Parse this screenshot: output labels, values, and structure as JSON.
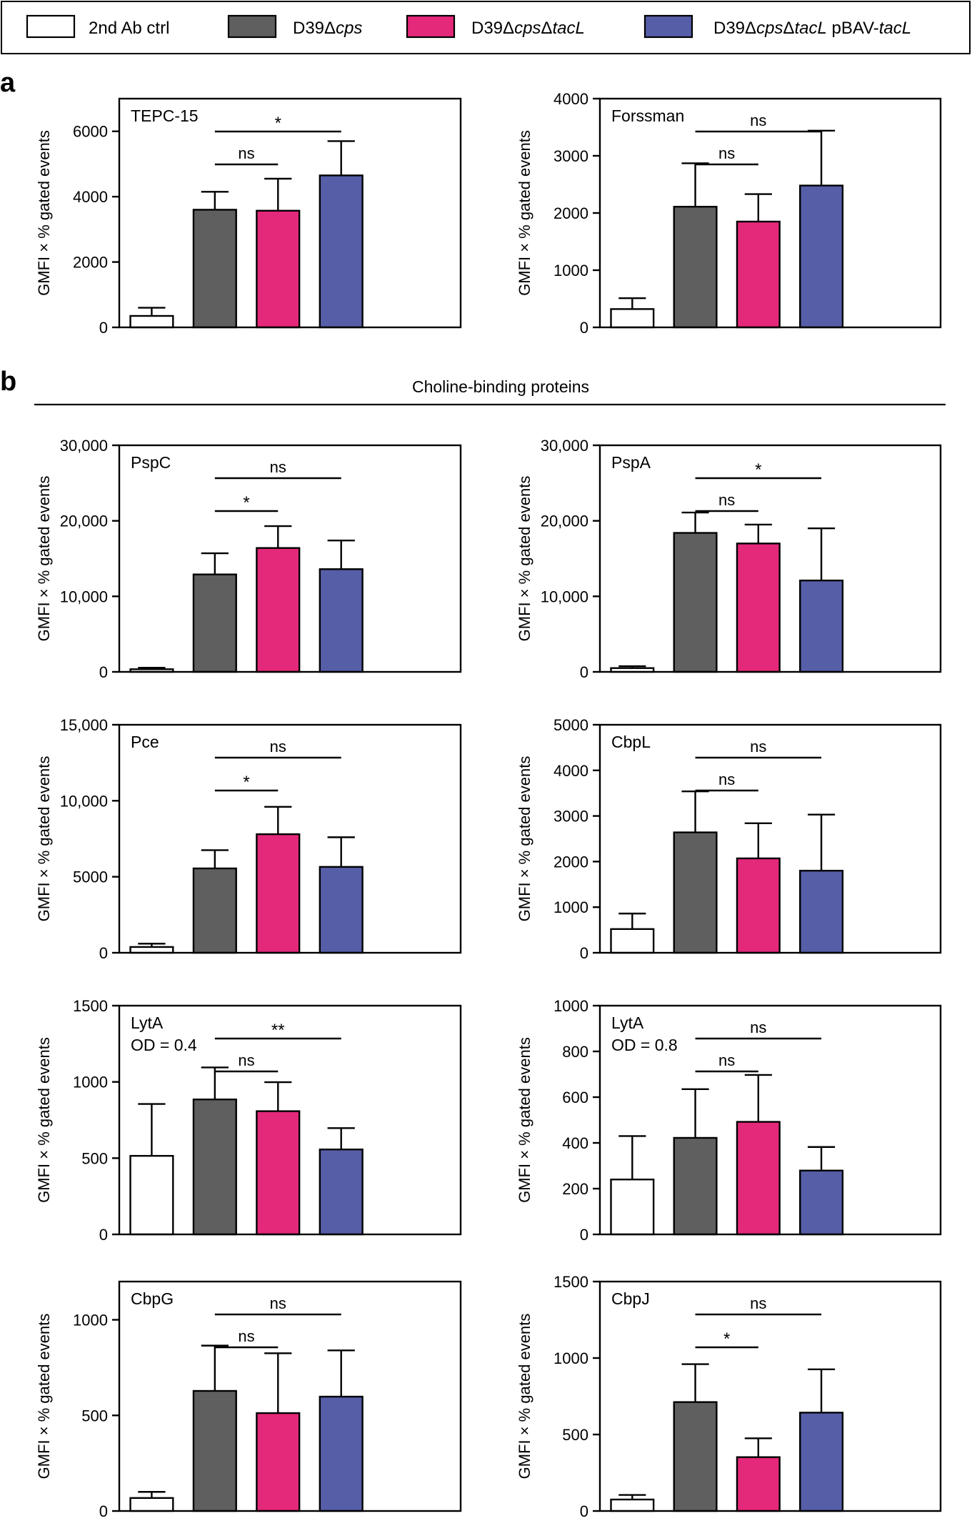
{
  "colors": {
    "ctrl": "#ffffff",
    "cps": "#5f5f5f",
    "tacL": "#e4287a",
    "comp": "#565ea8",
    "stroke": "#000000"
  },
  "legend": [
    {
      "key": "ctrl",
      "parts": [
        {
          "t": "2nd Ab ctrl",
          "i": false
        }
      ]
    },
    {
      "key": "cps",
      "parts": [
        {
          "t": "D39Δ",
          "i": false
        },
        {
          "t": "cps",
          "i": true
        }
      ]
    },
    {
      "key": "tacL",
      "parts": [
        {
          "t": "D39Δ",
          "i": false
        },
        {
          "t": "cps",
          "i": true
        },
        {
          "t": "Δ",
          "i": false
        },
        {
          "t": "tacL",
          "i": true
        }
      ]
    },
    {
      "key": "comp",
      "parts": [
        {
          "t": "D39Δ",
          "i": false
        },
        {
          "t": "cps",
          "i": true
        },
        {
          "t": "Δ",
          "i": false
        },
        {
          "t": "tacL",
          "i": true
        },
        {
          "t": " pBAV-",
          "i": false
        },
        {
          "t": "tacL",
          "i": true
        }
      ]
    }
  ],
  "panel_labels": {
    "a": "a",
    "b": "b"
  },
  "section_title": "Choline-binding proteins",
  "chart_data": [
    {
      "type": "bar",
      "title": "TEPC-15",
      "title2": "",
      "ylabel": "GMFI × % gated events",
      "ylim": [
        0,
        7000
      ],
      "yticks": [
        0,
        2000,
        4000,
        6000
      ],
      "ytick_labels": [
        "0",
        "2000",
        "4000",
        "6000"
      ],
      "categories": [
        "2nd Ab ctrl",
        "D39Δcps",
        "D39ΔcpsΔtacL",
        "D39ΔcpsΔtacL pBAV-tacL"
      ],
      "values": [
        350,
        3600,
        3570,
        4650
      ],
      "errors": [
        250,
        550,
        980,
        1050
      ],
      "sig": [
        {
          "from": 1,
          "to": 2,
          "label": "ns",
          "level": 1
        },
        {
          "from": 1,
          "to": 3,
          "label": "*",
          "level": 2
        }
      ]
    },
    {
      "type": "bar",
      "title": "Forssman",
      "title2": "",
      "ylabel": "GMFI × % gated events",
      "ylim": [
        0,
        4000
      ],
      "yticks": [
        0,
        1000,
        2000,
        3000,
        4000
      ],
      "ytick_labels": [
        "0",
        "1000",
        "2000",
        "3000",
        "4000"
      ],
      "categories": [
        "2nd Ab ctrl",
        "D39Δcps",
        "D39ΔcpsΔtacL",
        "D39ΔcpsΔtacL pBAV-tacL"
      ],
      "values": [
        320,
        2110,
        1850,
        2480
      ],
      "errors": [
        190,
        760,
        480,
        960
      ],
      "sig": [
        {
          "from": 1,
          "to": 2,
          "label": "ns",
          "level": 1
        },
        {
          "from": 1,
          "to": 3,
          "label": "ns",
          "level": 2
        }
      ]
    },
    {
      "type": "bar",
      "title": "PspC",
      "title2": "",
      "ylabel": "GMFI × % gated events",
      "ylim": [
        0,
        30000
      ],
      "yticks": [
        0,
        10000,
        20000,
        30000
      ],
      "ytick_labels": [
        "0",
        "10,000",
        "20,000",
        "30,000"
      ],
      "categories": [
        "2nd Ab ctrl",
        "D39Δcps",
        "D39ΔcpsΔtacL",
        "D39ΔcpsΔtacL pBAV-tacL"
      ],
      "values": [
        350,
        12900,
        16400,
        13600
      ],
      "errors": [
        200,
        2800,
        2900,
        3800
      ],
      "sig": [
        {
          "from": 1,
          "to": 2,
          "label": "*",
          "level": 1
        },
        {
          "from": 1,
          "to": 3,
          "label": "ns",
          "level": 2
        }
      ]
    },
    {
      "type": "bar",
      "title": "PspA",
      "title2": "",
      "ylabel": "GMFI × % gated events",
      "ylim": [
        0,
        30000
      ],
      "yticks": [
        0,
        10000,
        20000,
        30000
      ],
      "ytick_labels": [
        "0",
        "10,000",
        "20,000",
        "30,000"
      ],
      "categories": [
        "2nd Ab ctrl",
        "D39Δcps",
        "D39ΔcpsΔtacL",
        "D39ΔcpsΔtacL pBAV-tacL"
      ],
      "values": [
        500,
        18400,
        17000,
        12100
      ],
      "errors": [
        250,
        2700,
        2500,
        6900
      ],
      "sig": [
        {
          "from": 1,
          "to": 2,
          "label": "ns",
          "level": 1
        },
        {
          "from": 1,
          "to": 3,
          "label": "*",
          "level": 2
        }
      ]
    },
    {
      "type": "bar",
      "title": "Pce",
      "title2": "",
      "ylabel": "GMFI × % gated events",
      "ylim": [
        0,
        15000
      ],
      "yticks": [
        0,
        5000,
        10000,
        15000
      ],
      "ytick_labels": [
        "0",
        "5000",
        "10,000",
        "15,000"
      ],
      "categories": [
        "2nd Ab ctrl",
        "D39Δcps",
        "D39ΔcpsΔtacL",
        "D39ΔcpsΔtacL pBAV-tacL"
      ],
      "values": [
        380,
        5550,
        7800,
        5650
      ],
      "errors": [
        220,
        1200,
        1800,
        1950
      ],
      "sig": [
        {
          "from": 1,
          "to": 2,
          "label": "*",
          "level": 1
        },
        {
          "from": 1,
          "to": 3,
          "label": "ns",
          "level": 2
        }
      ]
    },
    {
      "type": "bar",
      "title": "CbpL",
      "title2": "",
      "ylabel": "GMFI × % gated events",
      "ylim": [
        0,
        5000
      ],
      "yticks": [
        0,
        1000,
        2000,
        3000,
        4000,
        5000
      ],
      "ytick_labels": [
        "0",
        "1000",
        "2000",
        "3000",
        "4000",
        "5000"
      ],
      "categories": [
        "2nd Ab ctrl",
        "D39Δcps",
        "D39ΔcpsΔtacL",
        "D39ΔcpsΔtacL pBAV-tacL"
      ],
      "values": [
        520,
        2640,
        2070,
        1800
      ],
      "errors": [
        340,
        900,
        770,
        1230
      ],
      "sig": [
        {
          "from": 1,
          "to": 2,
          "label": "ns",
          "level": 1
        },
        {
          "from": 1,
          "to": 3,
          "label": "ns",
          "level": 2
        }
      ]
    },
    {
      "type": "bar",
      "title": "LytA",
      "title2": "OD = 0.4",
      "ylabel": "GMFI × % gated events",
      "ylim": [
        0,
        1500
      ],
      "yticks": [
        0,
        500,
        1000,
        1500
      ],
      "ytick_labels": [
        "0",
        "500",
        "1000",
        "1500"
      ],
      "categories": [
        "2nd Ab ctrl",
        "D39Δcps",
        "D39ΔcpsΔtacL",
        "D39ΔcpsΔtacL pBAV-tacL"
      ],
      "values": [
        515,
        885,
        808,
        557
      ],
      "errors": [
        340,
        210,
        190,
        140
      ],
      "sig": [
        {
          "from": 1,
          "to": 2,
          "label": "ns",
          "level": 1
        },
        {
          "from": 1,
          "to": 3,
          "label": "**",
          "level": 2
        }
      ]
    },
    {
      "type": "bar",
      "title": "LytA",
      "title2": "OD = 0.8",
      "ylabel": "GMFI × % gated events",
      "ylim": [
        0,
        1000
      ],
      "yticks": [
        0,
        200,
        400,
        600,
        800,
        1000
      ],
      "ytick_labels": [
        "0",
        "200",
        "400",
        "600",
        "800",
        "1000"
      ],
      "categories": [
        "2nd Ab ctrl",
        "D39Δcps",
        "D39ΔcpsΔtacL",
        "D39ΔcpsΔtacL pBAV-tacL"
      ],
      "values": [
        240,
        422,
        492,
        279
      ],
      "errors": [
        190,
        213,
        205,
        103
      ],
      "sig": [
        {
          "from": 1,
          "to": 2,
          "label": "ns",
          "level": 1
        },
        {
          "from": 1,
          "to": 3,
          "label": "ns",
          "level": 2
        }
      ]
    },
    {
      "type": "bar",
      "title": "CbpG",
      "title2": "",
      "ylabel": "GMFI × % gated events",
      "ylim": [
        0,
        1200
      ],
      "yticks": [
        0,
        500,
        1000
      ],
      "ytick_labels": [
        "0",
        "500",
        "1000"
      ],
      "categories": [
        "2nd Ab ctrl",
        "D39Δcps",
        "D39ΔcpsΔtacL",
        "D39ΔcpsΔtacL pBAV-tacL"
      ],
      "values": [
        68,
        628,
        512,
        598
      ],
      "errors": [
        32,
        237,
        313,
        242
      ],
      "sig": [
        {
          "from": 1,
          "to": 2,
          "label": "ns",
          "level": 1
        },
        {
          "from": 1,
          "to": 3,
          "label": "ns",
          "level": 2
        }
      ]
    },
    {
      "type": "bar",
      "title": "CbpJ",
      "title2": "",
      "ylabel": "GMFI × % gated events",
      "ylim": [
        0,
        1500
      ],
      "yticks": [
        0,
        500,
        1000,
        1500
      ],
      "ytick_labels": [
        "0",
        "500",
        "1000",
        "1500"
      ],
      "categories": [
        "2nd Ab ctrl",
        "D39Δcps",
        "D39ΔcpsΔtacL",
        "D39ΔcpsΔtacL pBAV-tacL"
      ],
      "values": [
        75,
        712,
        352,
        643
      ],
      "errors": [
        30,
        248,
        123,
        283
      ],
      "sig": [
        {
          "from": 1,
          "to": 2,
          "label": "*",
          "level": 1
        },
        {
          "from": 1,
          "to": 3,
          "label": "ns",
          "level": 2
        }
      ]
    }
  ]
}
